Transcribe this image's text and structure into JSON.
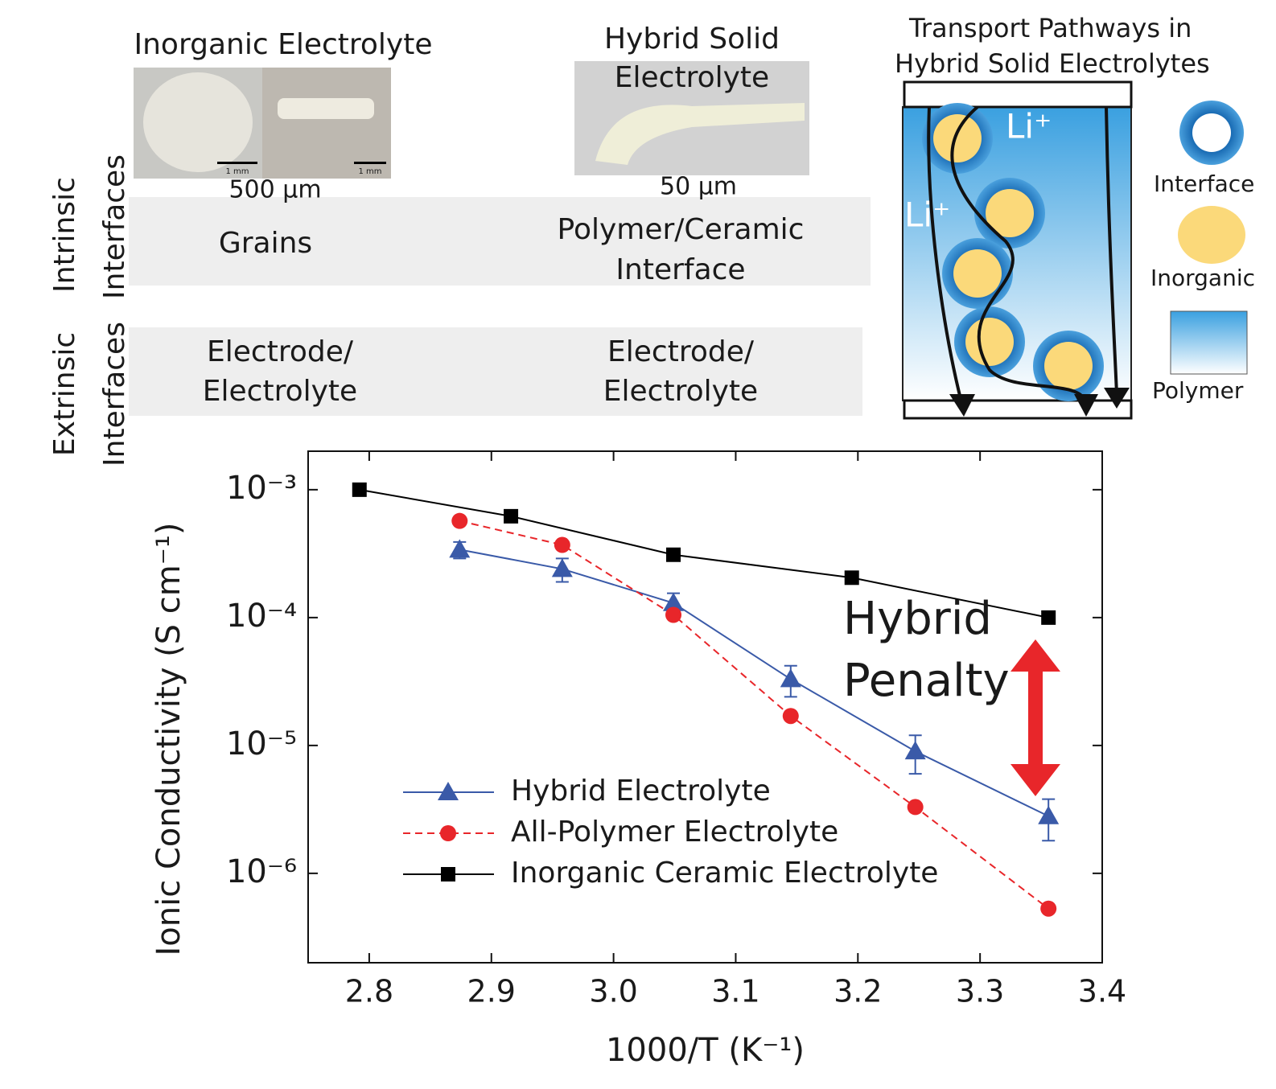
{
  "panels": {
    "columns": [
      {
        "title": [
          "Inorganic Electrolyte"
        ],
        "scale": "500 µm",
        "scale_bars": [
          "1 mm",
          "1 mm"
        ]
      },
      {
        "title": [
          "Hybrid Solid",
          "Electrolyte"
        ],
        "scale": "50 µm"
      }
    ],
    "rows": [
      {
        "label": [
          "Intrinsic",
          "Interfaces"
        ],
        "cells": [
          [
            "Grains"
          ],
          [
            "Polymer/Ceramic",
            "Interface"
          ]
        ]
      },
      {
        "label": [
          "Extrinsic",
          "Interfaces"
        ],
        "cells": [
          [
            "Electrode/",
            "Electrolyte"
          ],
          [
            "Electrode/",
            "Electrolyte"
          ]
        ]
      }
    ]
  },
  "schematic": {
    "title": [
      "Transport Pathways in",
      "Hybrid Solid Electrolytes"
    ],
    "ion_labels": [
      "Li⁺",
      "Li⁺"
    ],
    "legend": [
      "Interface",
      "Inorganic",
      "Polymer"
    ]
  },
  "chart_data": {
    "type": "line",
    "log_y": true,
    "xlabel": "1000/T (K⁻¹)",
    "ylabel": "Ionic Conductivity (S cm⁻¹)",
    "annotation": [
      "Hybrid",
      "Penalty"
    ],
    "annotation_color": "#e8262a",
    "legend_position": "lower left",
    "xlim": [
      2.75,
      3.4
    ],
    "xticks": [
      2.8,
      2.9,
      {
        "value": 3,
        "label": "3.0"
      },
      3.1,
      3.2,
      3.3,
      3.4
    ],
    "ylim": [
      2e-07,
      0.002
    ],
    "yticks": [
      {
        "value": 1e-06,
        "label": "10⁻⁶"
      },
      {
        "value": 1e-05,
        "label": "10⁻⁵"
      },
      {
        "value": 0.0001,
        "label": "10⁻⁴"
      },
      {
        "value": 0.001,
        "label": "10⁻³"
      }
    ],
    "series": [
      {
        "name": "Hybrid Electrolyte",
        "color": "#3a5aa8",
        "marker": "triangle",
        "dash": false,
        "x": [
          2.874,
          2.958,
          3.049,
          3.145,
          3.247,
          3.356
        ],
        "values": [
          0.00034,
          0.00024,
          0.00013,
          3.3e-05,
          9e-06,
          2.8e-06
        ],
        "errors": [
          5e-05,
          5e-05,
          2.5e-05,
          9e-06,
          3e-06,
          1e-06
        ]
      },
      {
        "name": "All-Polymer Electrolyte",
        "color": "#e8262a",
        "marker": "circle",
        "dash": true,
        "x": [
          2.874,
          2.958,
          3.049,
          3.145,
          3.247,
          3.356
        ],
        "values": [
          0.00057,
          0.00037,
          0.000105,
          1.7e-05,
          3.3e-06,
          5.3e-07
        ]
      },
      {
        "name": "Inorganic Ceramic Electrolyte",
        "color": "#000000",
        "marker": "square",
        "dash": false,
        "x": [
          2.792,
          2.916,
          3.049,
          3.195,
          3.356
        ],
        "values": [
          0.001,
          0.00062,
          0.00031,
          0.000205,
          0.0001
        ]
      }
    ]
  }
}
